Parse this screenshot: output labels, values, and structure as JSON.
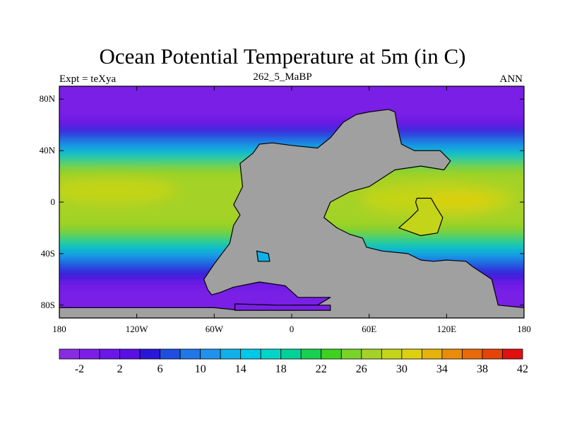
{
  "title": "Ocean Potential Temperature at 5m (in C)",
  "subtitle": "262_5_MaBP",
  "left_label": "Expt = teXya",
  "right_label": "ANN",
  "map": {
    "lon_range": [
      -180,
      180
    ],
    "lat_range": [
      -90,
      90
    ],
    "lon_ticks": [
      {
        "value": -180,
        "label": "180"
      },
      {
        "value": -120,
        "label": "120W"
      },
      {
        "value": -60,
        "label": "60W"
      },
      {
        "value": 0,
        "label": "0"
      },
      {
        "value": 60,
        "label": "60E"
      },
      {
        "value": 120,
        "label": "120E"
      },
      {
        "value": 180,
        "label": "180"
      }
    ],
    "lat_ticks": [
      {
        "value": 80,
        "label": "80N"
      },
      {
        "value": 40,
        "label": "40N"
      },
      {
        "value": 0,
        "label": "0"
      },
      {
        "value": -40,
        "label": "40S"
      },
      {
        "value": -80,
        "label": "80S"
      }
    ],
    "land_color": "#a0a0a0",
    "continent_outline": [
      [
        -40,
        30
      ],
      [
        -30,
        38
      ],
      [
        -25,
        45
      ],
      [
        -15,
        46
      ],
      [
        0,
        44
      ],
      [
        20,
        42
      ],
      [
        30,
        50
      ],
      [
        40,
        62
      ],
      [
        50,
        68
      ],
      [
        60,
        70
      ],
      [
        75,
        72
      ],
      [
        80,
        70
      ],
      [
        82,
        58
      ],
      [
        85,
        45
      ],
      [
        95,
        40
      ],
      [
        115,
        40
      ],
      [
        123,
        32
      ],
      [
        118,
        25
      ],
      [
        100,
        28
      ],
      [
        80,
        25
      ],
      [
        60,
        12
      ],
      [
        45,
        8
      ],
      [
        30,
        0
      ],
      [
        25,
        -12
      ],
      [
        35,
        -20
      ],
      [
        45,
        -25
      ],
      [
        55,
        -28
      ],
      [
        58,
        -35
      ],
      [
        70,
        -38
      ],
      [
        90,
        -40
      ],
      [
        100,
        -45
      ],
      [
        110,
        -46
      ],
      [
        120,
        -45
      ],
      [
        135,
        -46
      ],
      [
        140,
        -50
      ],
      [
        155,
        -60
      ],
      [
        160,
        -80
      ],
      [
        180,
        -82
      ],
      [
        180,
        -90
      ],
      [
        -180,
        -90
      ],
      [
        -180,
        -82
      ],
      [
        -60,
        -82
      ],
      [
        -40,
        -84
      ],
      [
        -20,
        -82
      ],
      [
        0,
        -80
      ],
      [
        20,
        -80
      ],
      [
        30,
        -74
      ],
      [
        5,
        -74
      ],
      [
        -5,
        -65
      ],
      [
        -25,
        -62
      ],
      [
        -45,
        -66
      ],
      [
        -55,
        -70
      ],
      [
        -62,
        -72
      ],
      [
        -65,
        -68
      ],
      [
        -68,
        -60
      ],
      [
        -60,
        -48
      ],
      [
        -48,
        -32
      ],
      [
        -45,
        -18
      ],
      [
        -40,
        -10
      ],
      [
        -45,
        -2
      ],
      [
        -38,
        12
      ],
      [
        -40,
        30
      ]
    ],
    "inland_sea": [
      [
        97,
        3
      ],
      [
        108,
        3
      ],
      [
        112,
        -4
      ],
      [
        117,
        -12
      ],
      [
        113,
        -24
      ],
      [
        100,
        -26
      ],
      [
        83,
        -20
      ],
      [
        92,
        -12
      ],
      [
        98,
        -6
      ],
      [
        96,
        0
      ]
    ],
    "island": [
      [
        -27,
        -38
      ],
      [
        -18,
        -40
      ],
      [
        -17,
        -46
      ],
      [
        -26,
        -46
      ]
    ],
    "southern_sea": [
      [
        -44,
        -79
      ],
      [
        -12,
        -80
      ],
      [
        30,
        -80
      ],
      [
        30,
        -84
      ],
      [
        -44,
        -84
      ]
    ]
  },
  "colorbar": {
    "colors": [
      "#8a2be2",
      "#7b1fe6",
      "#6a17e8",
      "#5a10e3",
      "#2a16d8",
      "#1d4ee0",
      "#1f77e8",
      "#1f92ee",
      "#10b0e8",
      "#00c8e8",
      "#00d6c8",
      "#00d29a",
      "#18d050",
      "#40d020",
      "#7ad428",
      "#a4d228",
      "#c4d418",
      "#dcd010",
      "#e6b20c",
      "#e88c0a",
      "#e86a08",
      "#e44408",
      "#e01010"
    ],
    "labels": [
      "-2",
      "2",
      "6",
      "10",
      "14",
      "18",
      "22",
      "26",
      "30",
      "34",
      "38",
      "42"
    ]
  }
}
